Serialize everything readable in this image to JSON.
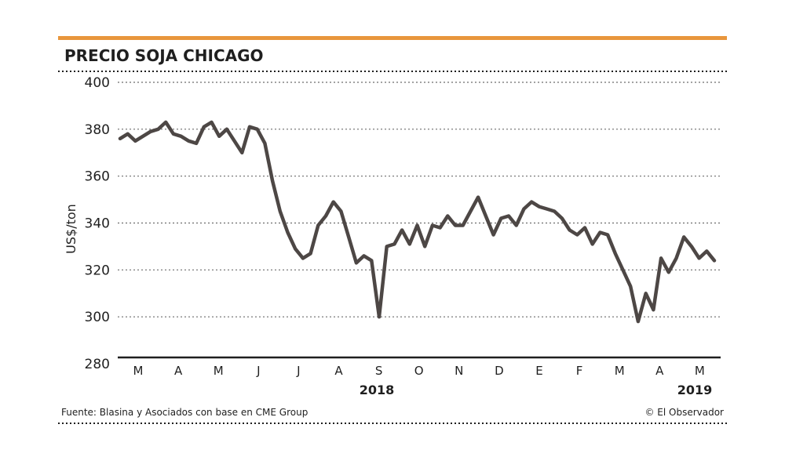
{
  "colors": {
    "accent": "#e8963c",
    "line": "#4d4745",
    "text": "#1f1f1f",
    "grid": "#6b6b6b"
  },
  "header": {
    "title": "PRECIO SOJA CHICAGO"
  },
  "footer": {
    "source": "Fuente: Blasina y Asociados con base en CME Group",
    "credit": "© El Observador"
  },
  "chart_data": {
    "type": "line",
    "ylabel": "US$/ton",
    "ylim": [
      280,
      400
    ],
    "yticks": [
      "400",
      "380",
      "360",
      "340",
      "320",
      "300",
      "280"
    ],
    "grid": "dotted horizontal lines",
    "month_labels": [
      "M",
      "A",
      "M",
      "J",
      "J",
      "A",
      "S",
      "O",
      "N",
      "D",
      "E",
      "F",
      "M",
      "A",
      "M"
    ],
    "year_labels": [
      "2018",
      "2019"
    ],
    "series": [
      {
        "values": [
          376,
          378,
          375,
          377,
          379,
          380,
          383,
          378,
          377,
          375,
          374,
          381,
          383,
          377,
          380,
          375,
          370,
          381,
          380,
          374,
          358,
          345,
          336,
          329,
          325,
          327,
          339,
          343,
          349,
          345,
          334,
          323,
          326,
          324,
          300,
          330,
          331,
          337,
          331,
          339,
          330,
          339,
          338,
          343,
          339,
          339,
          345,
          351,
          343,
          335,
          342,
          343,
          339,
          346,
          349,
          347,
          346,
          345,
          342,
          337,
          335,
          338,
          331,
          336,
          335,
          327,
          320,
          313,
          298,
          310,
          303,
          325,
          319,
          325,
          334,
          330,
          325,
          328,
          324
        ]
      }
    ]
  }
}
